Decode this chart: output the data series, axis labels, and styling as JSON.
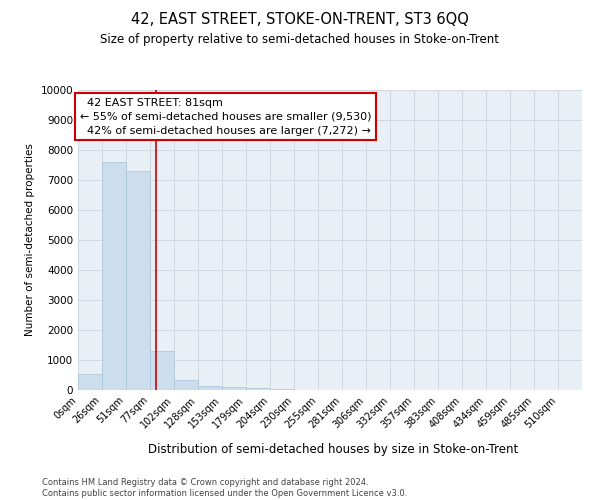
{
  "title": "42, EAST STREET, STOKE-ON-TRENT, ST3 6QQ",
  "subtitle": "Size of property relative to semi-detached houses in Stoke-on-Trent",
  "xlabel": "Distribution of semi-detached houses by size in Stoke-on-Trent",
  "ylabel": "Number of semi-detached properties",
  "footnote": "Contains HM Land Registry data © Crown copyright and database right 2024.\nContains public sector information licensed under the Open Government Licence v3.0.",
  "bar_labels": [
    "0sqm",
    "26sqm",
    "51sqm",
    "77sqm",
    "102sqm",
    "128sqm",
    "153sqm",
    "179sqm",
    "204sqm",
    "230sqm",
    "255sqm",
    "281sqm",
    "306sqm",
    "332sqm",
    "357sqm",
    "383sqm",
    "408sqm",
    "434sqm",
    "459sqm",
    "485sqm",
    "510sqm"
  ],
  "bar_values": [
    550,
    7600,
    7300,
    1300,
    350,
    150,
    100,
    75,
    50,
    0,
    0,
    0,
    0,
    0,
    0,
    0,
    0,
    0,
    0,
    0,
    0
  ],
  "bar_color": "#ccdded",
  "bar_edge_color": "#aac4d8",
  "grid_color": "#c8d0d8",
  "annotation_box_color": "#ffffff",
  "annotation_border_color": "#cc0000",
  "subject_line_color": "#cc0000",
  "subject_sqm": 81,
  "subject_label": "42 EAST STREET: 81sqm",
  "pct_smaller": 55,
  "n_smaller": 9530,
  "pct_larger": 42,
  "n_larger": 7272,
  "ylim": [
    0,
    10000
  ],
  "yticks": [
    0,
    1000,
    2000,
    3000,
    4000,
    5000,
    6000,
    7000,
    8000,
    9000,
    10000
  ],
  "bin_width": 25,
  "num_bins": 21,
  "background_color": "#e8eff5"
}
